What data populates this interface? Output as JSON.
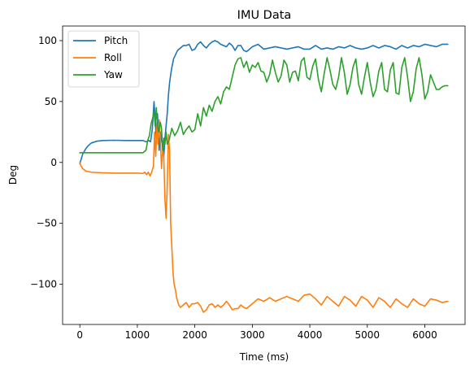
{
  "chart_data": {
    "type": "line",
    "title": "IMU Data",
    "xlabel": "Time (ms)",
    "ylabel": "Deg",
    "xlim": [
      -300,
      6700
    ],
    "ylim": [
      -133,
      112
    ],
    "xticks": [
      0,
      1000,
      2000,
      3000,
      4000,
      5000,
      6000
    ],
    "yticks": [
      -100,
      -50,
      0,
      50,
      100
    ],
    "grid": false,
    "legend_position": "top-left",
    "series": [
      {
        "name": "Pitch",
        "color": "#1f77b4",
        "x": [
          0,
          50,
          100,
          150,
          200,
          300,
          400,
          600,
          800,
          1000,
          1050,
          1100,
          1150,
          1200,
          1230,
          1260,
          1290,
          1310,
          1330,
          1350,
          1380,
          1400,
          1420,
          1440,
          1460,
          1480,
          1500,
          1520,
          1540,
          1560,
          1580,
          1600,
          1630,
          1660,
          1700,
          1750,
          1800,
          1850,
          1900,
          1950,
          2000,
          2050,
          2100,
          2150,
          2200,
          2250,
          2300,
          2350,
          2400,
          2450,
          2500,
          2550,
          2600,
          2650,
          2700,
          2750,
          2800,
          2850,
          2900,
          2950,
          3000,
          3100,
          3200,
          3300,
          3400,
          3500,
          3600,
          3700,
          3800,
          3900,
          4000,
          4100,
          4200,
          4300,
          4400,
          4500,
          4600,
          4700,
          4800,
          4900,
          5000,
          5100,
          5200,
          5300,
          5400,
          5500,
          5600,
          5700,
          5800,
          5900,
          6000,
          6100,
          6200,
          6300,
          6400
        ],
        "y": [
          -1,
          7,
          11,
          14,
          16,
          17.5,
          18,
          18.2,
          18,
          18,
          18,
          18,
          17,
          18,
          17,
          27,
          50,
          35,
          20,
          40,
          10,
          25,
          18,
          15,
          5,
          20,
          30,
          40,
          55,
          65,
          72,
          78,
          85,
          88,
          92,
          94,
          96,
          96,
          97,
          92,
          93,
          97,
          99,
          96,
          94,
          97,
          99,
          100,
          99,
          97,
          96,
          95,
          98,
          96,
          92,
          96,
          96,
          92,
          91,
          93,
          95,
          97,
          93,
          94,
          95,
          94,
          93,
          94,
          95,
          93,
          93,
          96,
          93,
          94,
          93,
          95,
          94,
          96,
          94,
          93,
          94,
          96,
          94,
          96,
          95,
          93,
          96,
          94,
          96,
          95,
          97,
          96,
          95,
          97,
          97
        ]
      },
      {
        "name": "Roll",
        "color": "#ff7f0e",
        "x": [
          0,
          20,
          50,
          100,
          200,
          400,
          600,
          800,
          1000,
          1100,
          1130,
          1160,
          1190,
          1220,
          1250,
          1280,
          1300,
          1320,
          1340,
          1360,
          1380,
          1400,
          1420,
          1440,
          1460,
          1480,
          1500,
          1520,
          1540,
          1560,
          1580,
          1600,
          1620,
          1640,
          1660,
          1680,
          1700,
          1720,
          1750,
          1800,
          1850,
          1900,
          1950,
          2000,
          2050,
          2100,
          2150,
          2200,
          2250,
          2300,
          2350,
          2400,
          2450,
          2500,
          2550,
          2600,
          2650,
          2700,
          2750,
          2800,
          2850,
          2900,
          3000,
          3100,
          3200,
          3300,
          3400,
          3500,
          3600,
          3700,
          3800,
          3900,
          4000,
          4100,
          4200,
          4300,
          4400,
          4500,
          4600,
          4700,
          4800,
          4900,
          5000,
          5100,
          5200,
          5300,
          5400,
          5500,
          5600,
          5700,
          5800,
          5900,
          6000,
          6100,
          6200,
          6300,
          6400
        ],
        "y": [
          0,
          -3,
          -5,
          -7,
          -8,
          -8.5,
          -8.8,
          -8.8,
          -8.8,
          -9,
          -8,
          -10,
          -8,
          -11,
          -8,
          -3,
          25,
          5,
          30,
          15,
          35,
          20,
          -5,
          10,
          5,
          -30,
          -46,
          -20,
          23,
          10,
          -50,
          -70,
          -90,
          -100,
          -104,
          -110,
          -114,
          -117,
          -119,
          -117,
          -115,
          -119,
          -116,
          -116,
          -115,
          -118,
          -123,
          -121,
          -117,
          -116,
          -119,
          -117,
          -119,
          -117,
          -114,
          -117,
          -121,
          -120,
          -120,
          -117,
          -119,
          -120,
          -116,
          -112,
          -114,
          -111,
          -114,
          -112,
          -110,
          -112,
          -114,
          -109,
          -108,
          -112,
          -117,
          -110,
          -114,
          -118,
          -110,
          -113,
          -118,
          -110,
          -113,
          -119,
          -111,
          -114,
          -119,
          -112,
          -116,
          -119,
          -112,
          -116,
          -118,
          -112,
          -113,
          -115,
          -114
        ]
      },
      {
        "name": "Yaw",
        "color": "#2ca02c",
        "x": [
          0,
          200,
          400,
          600,
          800,
          1000,
          1100,
          1150,
          1180,
          1210,
          1240,
          1270,
          1290,
          1310,
          1330,
          1350,
          1370,
          1400,
          1420,
          1440,
          1460,
          1480,
          1500,
          1520,
          1550,
          1600,
          1650,
          1700,
          1750,
          1800,
          1850,
          1900,
          1950,
          2000,
          2050,
          2100,
          2150,
          2200,
          2250,
          2300,
          2350,
          2400,
          2450,
          2500,
          2550,
          2600,
          2650,
          2700,
          2750,
          2800,
          2850,
          2900,
          2950,
          3000,
          3050,
          3100,
          3150,
          3200,
          3250,
          3300,
          3350,
          3400,
          3450,
          3500,
          3550,
          3600,
          3650,
          3700,
          3750,
          3800,
          3850,
          3900,
          3950,
          4000,
          4050,
          4100,
          4150,
          4200,
          4250,
          4300,
          4350,
          4400,
          4450,
          4500,
          4550,
          4600,
          4650,
          4700,
          4750,
          4800,
          4850,
          4900,
          4950,
          5000,
          5050,
          5100,
          5150,
          5200,
          5250,
          5300,
          5350,
          5400,
          5450,
          5500,
          5550,
          5600,
          5650,
          5700,
          5750,
          5800,
          5850,
          5900,
          5950,
          6000,
          6050,
          6100,
          6150,
          6200,
          6250,
          6300,
          6350,
          6400
        ],
        "y": [
          8,
          8,
          8,
          8,
          8,
          8,
          8,
          10,
          18,
          22,
          32,
          37,
          42,
          30,
          45,
          30,
          25,
          33,
          28,
          10,
          20,
          15,
          25,
          15,
          18,
          28,
          22,
          26,
          33,
          23,
          27,
          30,
          25,
          27,
          40,
          30,
          45,
          38,
          47,
          42,
          50,
          54,
          48,
          58,
          62,
          60,
          70,
          80,
          85,
          86,
          78,
          83,
          74,
          80,
          78,
          82,
          75,
          74,
          66,
          72,
          84,
          74,
          66,
          71,
          84,
          80,
          66,
          74,
          75,
          67,
          83,
          86,
          70,
          68,
          79,
          85,
          68,
          58,
          73,
          86,
          76,
          64,
          60,
          70,
          86,
          74,
          56,
          64,
          78,
          85,
          64,
          56,
          70,
          82,
          66,
          54,
          60,
          75,
          82,
          60,
          58,
          76,
          82,
          57,
          56,
          78,
          86,
          70,
          50,
          58,
          77,
          86,
          72,
          52,
          58,
          72,
          66,
          60,
          60,
          62,
          63,
          63
        ]
      }
    ]
  }
}
